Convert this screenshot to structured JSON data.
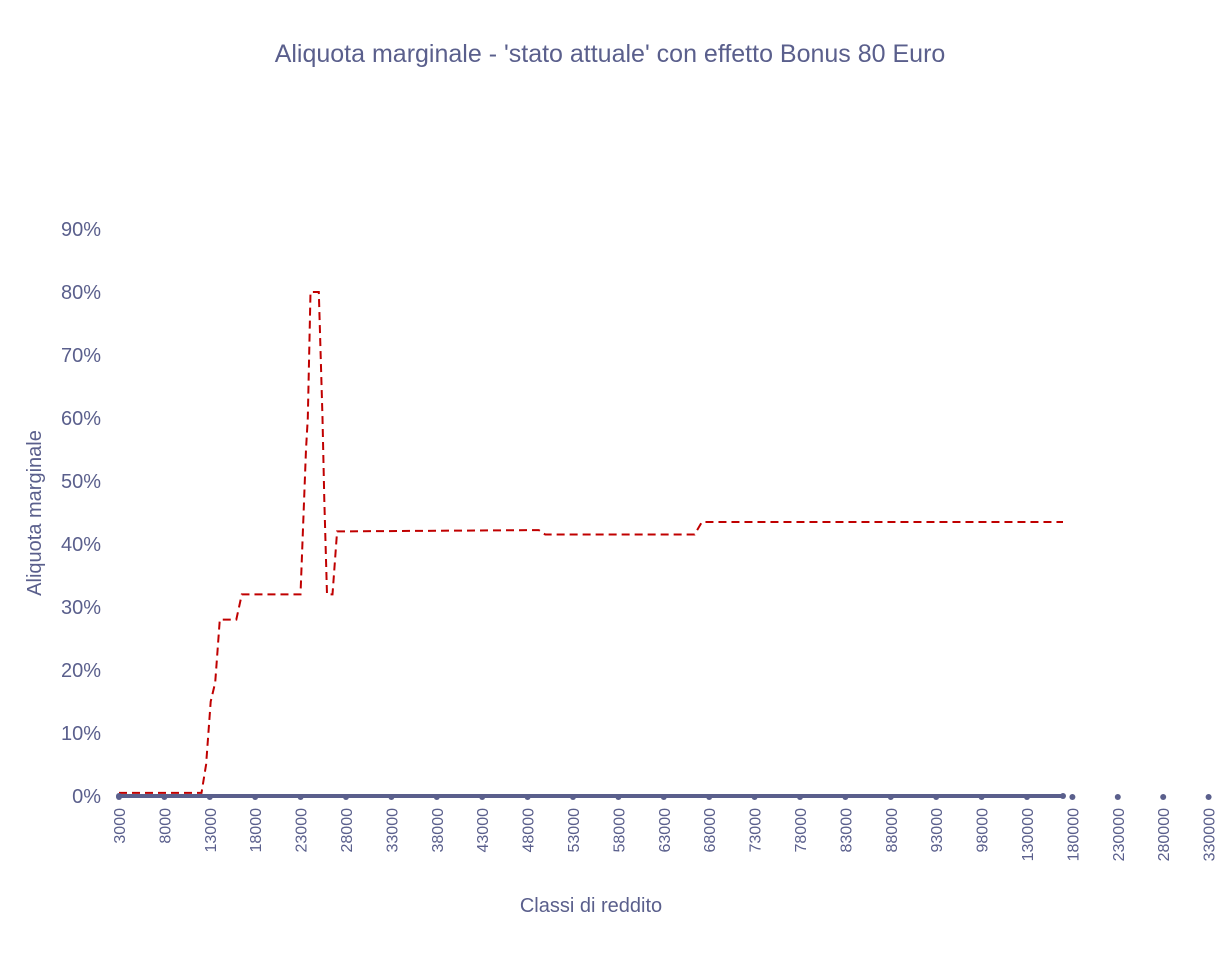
{
  "chart_data": {
    "type": "line",
    "title": "Aliquota marginale - 'stato attuale' con effetto Bonus 80 Euro",
    "xlabel": "Classi di reddito",
    "ylabel": "Aliquota marginale",
    "ylim": [
      0,
      0.9
    ],
    "y_ticks": [
      "0%",
      "10%",
      "20%",
      "30%",
      "40%",
      "50%",
      "60%",
      "70%",
      "80%",
      "90%"
    ],
    "x_tick_labels": [
      "3000",
      "8000",
      "13000",
      "18000",
      "23000",
      "28000",
      "33000",
      "38000",
      "43000",
      "48000",
      "53000",
      "58000",
      "63000",
      "68000",
      "73000",
      "78000",
      "83000",
      "88000",
      "93000",
      "98000",
      "130000",
      "180000",
      "230000",
      "280000",
      "330000"
    ],
    "category_count": 104,
    "grid": false,
    "legend": "none",
    "series": [
      {
        "line_color": "#c00000",
        "line_style": "dashed",
        "points": [
          [
            0,
            0.005
          ],
          [
            9,
            0.005
          ],
          [
            9.5,
            0.05
          ],
          [
            10,
            0.15
          ],
          [
            10.5,
            0.18
          ],
          [
            11,
            0.28
          ],
          [
            12.8,
            0.28
          ],
          [
            13.4,
            0.32
          ],
          [
            19.8,
            0.32
          ],
          [
            20.4,
            0.55
          ],
          [
            20.6,
            0.6
          ],
          [
            20.9,
            0.8
          ],
          [
            21.8,
            0.8
          ],
          [
            22.2,
            0.6
          ],
          [
            22.4,
            0.47
          ],
          [
            22.7,
            0.32
          ],
          [
            23.3,
            0.32
          ],
          [
            23.8,
            0.42
          ],
          [
            45.8,
            0.422
          ],
          [
            46.5,
            0.415
          ],
          [
            62.8,
            0.415
          ],
          [
            63.6,
            0.435
          ],
          [
            103,
            0.435
          ]
        ]
      },
      {
        "line_color": "#5a5f8c",
        "line_style": "solid",
        "marker": "circle",
        "points": [
          [
            0,
            0
          ],
          [
            103,
            0
          ]
        ]
      }
    ]
  }
}
